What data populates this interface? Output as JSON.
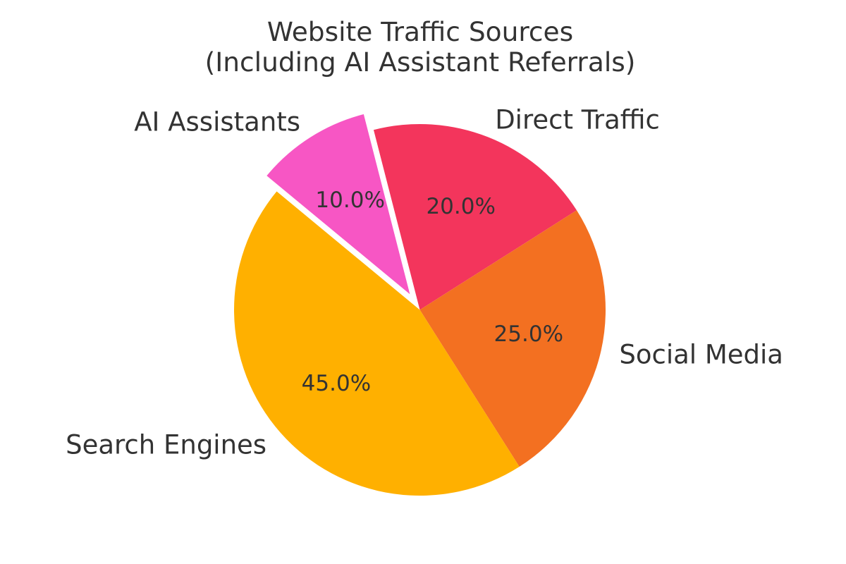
{
  "chart_data": {
    "type": "pie",
    "title": "Website Traffic Sources",
    "subtitle": "(Including AI Assistant Referrals)",
    "categories": [
      "Direct Traffic",
      "Social Media",
      "Search Engines",
      "AI Assistants"
    ],
    "values": [
      20.0,
      25.0,
      45.0,
      10.0
    ],
    "percent_labels": [
      "20.0%",
      "25.0%",
      "45.0%",
      "10.0%"
    ],
    "colors": [
      "#F3355C",
      "#F37021",
      "#FFB000",
      "#F756C4"
    ],
    "explode": [
      0,
      0,
      0,
      0.1
    ],
    "start_angle": 104.4,
    "direction": "clockwise",
    "label_distance": 1.1,
    "pct_distance": 0.6,
    "legend": "none",
    "text_color": "#333333",
    "background": "#FFFFFF"
  }
}
